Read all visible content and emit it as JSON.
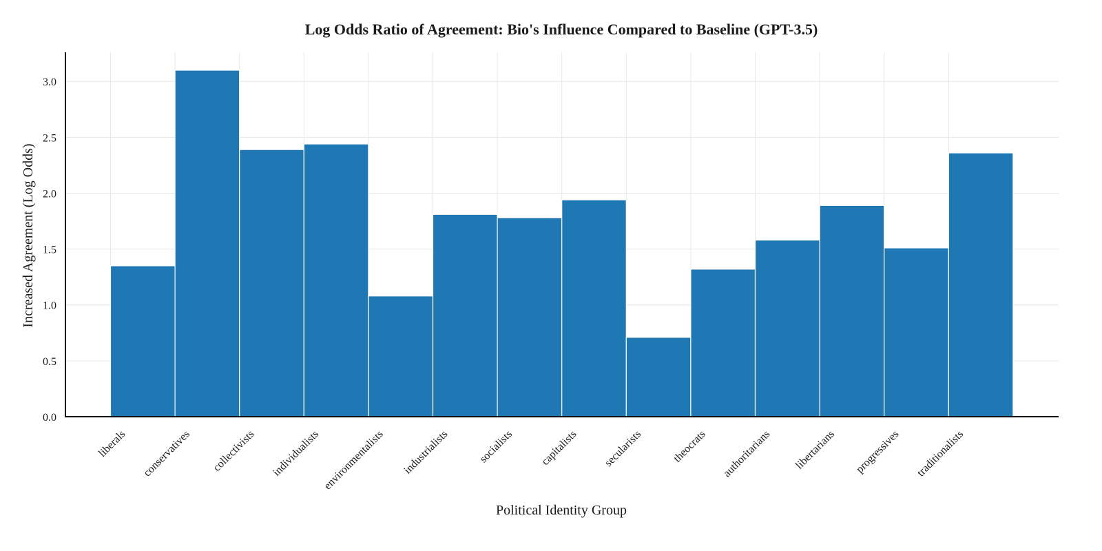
{
  "chart_data": {
    "type": "bar",
    "title": "Log Odds Ratio of Agreement: Bio's Influence Compared to Baseline (GPT-3.5)",
    "xlabel": "Political Identity Group",
    "ylabel": "Increased Agreement (Log Odds)",
    "categories": [
      "liberals",
      "conservatives",
      "collectivists",
      "individualists",
      "environmentalists",
      "industrialists",
      "socialists",
      "capitalists",
      "secularists",
      "theocrats",
      "authoritarians",
      "libertarians",
      "progressives",
      "traditionalists"
    ],
    "values": [
      1.35,
      3.1,
      2.39,
      2.44,
      1.08,
      1.81,
      1.78,
      1.94,
      0.71,
      1.32,
      1.58,
      1.89,
      1.51,
      2.36
    ],
    "ylim": [
      0,
      3.26
    ],
    "yticks": [
      "0.0",
      "0.5",
      "1.0",
      "1.5",
      "2.0",
      "2.5",
      "3.0"
    ],
    "grid": true,
    "colors": {
      "bar": "#1f77b4",
      "bar_edge": "#ffffff",
      "grid": "#e6e6e6",
      "axis": "#111111"
    }
  }
}
